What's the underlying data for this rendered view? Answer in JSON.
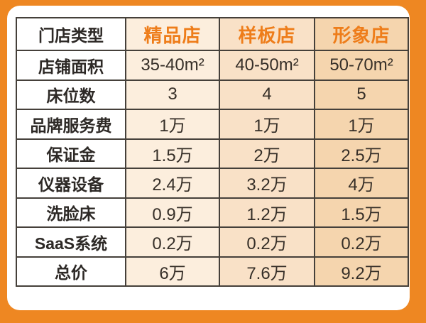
{
  "theme": {
    "frame_orange": "#ee8722",
    "accent_orange": "#ee7d1a",
    "table_border": "#45403a",
    "text_dark": "#2d2926",
    "column_bg_boutique": "#fceedd",
    "column_bg_sample": "#f9e1c7",
    "column_bg_image": "#f5d5ae",
    "card_bg": "#ffffff"
  },
  "chart_data": {
    "type": "table",
    "title": "",
    "columns": [
      "门店类型",
      "精品店",
      "样板店",
      "形象店"
    ],
    "rows": [
      {
        "label": "店铺面积",
        "values": [
          "35-40m²",
          "40-50m²",
          "50-70m²"
        ]
      },
      {
        "label": "床位数",
        "values": [
          "3",
          "4",
          "5"
        ]
      },
      {
        "label": "品牌服务费",
        "values": [
          "1万",
          "1万",
          "1万"
        ]
      },
      {
        "label": "保证金",
        "values": [
          "1.5万",
          "2万",
          "2.5万"
        ]
      },
      {
        "label": "仪器设备",
        "values": [
          "2.4万",
          "3.2万",
          "4万"
        ]
      },
      {
        "label": "洗脸床",
        "values": [
          "0.9万",
          "1.2万",
          "1.5万"
        ]
      },
      {
        "label": "SaaS系统",
        "values": [
          "0.2万",
          "0.2万",
          "0.2万"
        ]
      },
      {
        "label": "总价",
        "values": [
          "6万",
          "7.6万",
          "9.2万"
        ]
      }
    ]
  }
}
